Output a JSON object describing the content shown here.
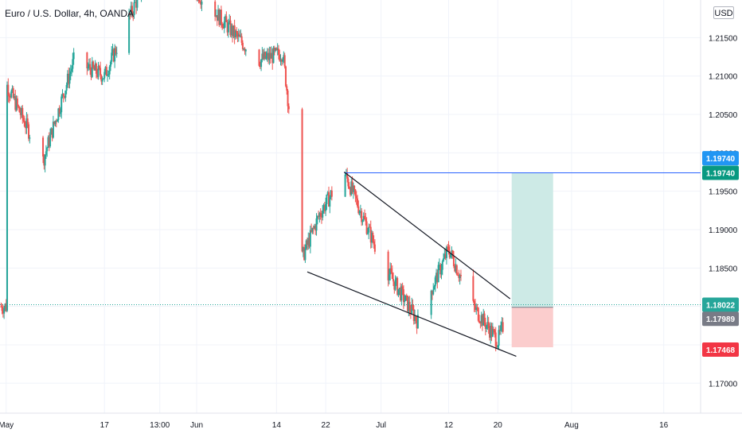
{
  "header": {
    "symbol_title": "Euro / U.S. Dollar, 4h, OANDA",
    "currency": "USD"
  },
  "colors": {
    "up": "#26a69a",
    "down": "#ef5350",
    "trendline": "#131722",
    "horizontal_line": "#2962ff",
    "target_zone": "#cdeae6",
    "stop_zone": "#fbcdcd",
    "last_price_badge": "#26a69a",
    "entry_badge": "#787b86",
    "stop_badge": "#f23645",
    "target_badge": "#2196f3",
    "target_badge_2": "#089981"
  },
  "chart_data": {
    "type": "candlestick",
    "instrument": "Euro / U.S. Dollar",
    "timeframe": "4h",
    "source": "OANDA",
    "ylim": [
      1.1661,
      1.2199
    ],
    "y_ticks": [
      "1.21500",
      "1.21000",
      "1.20500",
      "1.20000",
      "1.19500",
      "1.19000",
      "1.18500",
      "1.18000",
      "1.17500",
      "1.17000"
    ],
    "x_ticks": [
      "May",
      "17",
      "13:00",
      "Jun",
      "14",
      "22",
      "Jul",
      "12",
      "20",
      "Aug",
      "16"
    ],
    "key_points": [
      {
        "x": "May",
        "y": 1.209
      },
      {
        "x": "May 7",
        "y": 1.199
      },
      {
        "x": "May 12",
        "y": 1.212
      },
      {
        "x": "May 17",
        "y": 1.21
      },
      {
        "x": "May 25",
        "y": 1.225
      },
      {
        "x": "Jun",
        "y": 1.221
      },
      {
        "x": "Jun 11",
        "y": 1.212
      },
      {
        "x": "Jun 15",
        "y": 1.213
      },
      {
        "x": "Jun 17",
        "y": 1.199
      },
      {
        "x": "Jun 18",
        "y": 1.186
      },
      {
        "x": "Jun 21",
        "y": 1.192
      },
      {
        "x": "Jun 25",
        "y": 1.1975
      },
      {
        "x": "Jul 1",
        "y": 1.186
      },
      {
        "x": "Jul 7",
        "y": 1.178
      },
      {
        "x": "Jul 12",
        "y": 1.1875
      },
      {
        "x": "Jul 16",
        "y": 1.18
      },
      {
        "x": "Jul 20",
        "y": 1.1755
      },
      {
        "x": "Jul 22",
        "y": 1.18
      }
    ],
    "annotations": {
      "upper_trendline": [
        {
          "x": "Jun 25",
          "y": 1.1975
        },
        {
          "x": "Jul 22",
          "y": 1.181
        }
      ],
      "lower_trendline": [
        {
          "x": "Jun 19",
          "y": 1.1845
        },
        {
          "x": "Jul 23",
          "y": 1.1735
        }
      ],
      "horizontal_level": 1.1974,
      "target_zone": [
        1.17989,
        1.1974
      ],
      "stop_zone": [
        1.17468,
        1.17989
      ]
    },
    "price_labels": {
      "target_1": "1.19740",
      "target_2": "1.19740",
      "last_price": "1.18022",
      "entry": "1.17989",
      "stop": "1.17468"
    }
  }
}
